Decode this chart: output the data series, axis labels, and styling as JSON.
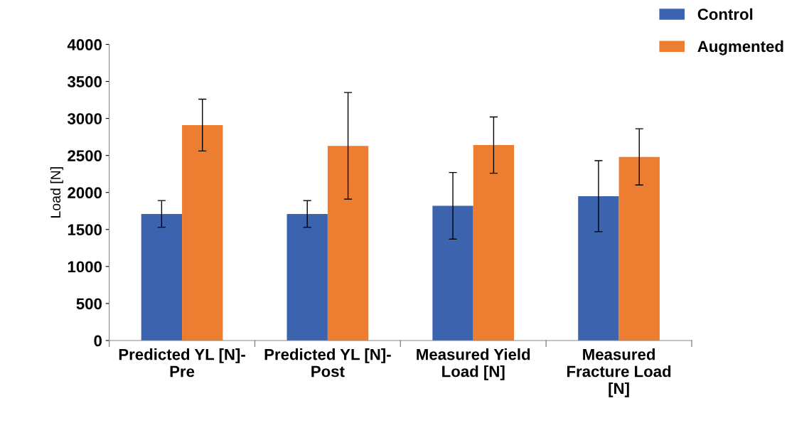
{
  "chart_data": {
    "type": "bar",
    "ylabel": "Load [N]",
    "categories": [
      "Predicted YL [N]-\nPre",
      "Predicted YL [N]-\nPost",
      "Measured Yield\nLoad [N]",
      "Measured\nFracture Load\n[N]"
    ],
    "series": [
      {
        "name": "Control",
        "color": "#3c64ae",
        "values": [
          1710,
          1710,
          1820,
          1950
        ],
        "errors": [
          180,
          180,
          450,
          480
        ]
      },
      {
        "name": "Augmented",
        "color": "#ed7d31",
        "values": [
          2910,
          2630,
          2640,
          2480
        ],
        "errors": [
          350,
          720,
          380,
          380
        ]
      }
    ],
    "ylim": [
      0,
      4000
    ],
    "yticks": [
      0,
      500,
      1000,
      1500,
      2000,
      2500,
      3000,
      3500,
      4000
    ],
    "grid": false,
    "legend": "top right"
  }
}
